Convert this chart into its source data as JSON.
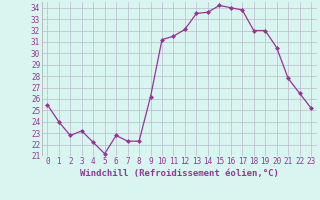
{
  "hours": [
    0,
    1,
    2,
    3,
    4,
    5,
    6,
    7,
    8,
    9,
    10,
    11,
    12,
    13,
    14,
    15,
    16,
    17,
    18,
    19,
    20,
    21,
    22,
    23
  ],
  "values": [
    25.5,
    24.0,
    22.8,
    23.2,
    22.2,
    21.2,
    22.8,
    22.3,
    22.3,
    26.2,
    31.2,
    31.5,
    32.1,
    33.5,
    33.6,
    34.2,
    34.0,
    33.8,
    32.0,
    32.0,
    30.5,
    27.8,
    26.5,
    25.2
  ],
  "line_color": "#993399",
  "marker": "D",
  "marker_size": 2,
  "bg_color": "#d8f5f0",
  "grid_color": "#bbbbcc",
  "xlabel": "Windchill (Refroidissement éolien,°C)",
  "tick_color": "#993399",
  "ylim": [
    21,
    34.5
  ],
  "yticks": [
    21,
    22,
    23,
    24,
    25,
    26,
    27,
    28,
    29,
    30,
    31,
    32,
    33,
    34
  ],
  "xticks": [
    0,
    1,
    2,
    3,
    4,
    5,
    6,
    7,
    8,
    9,
    10,
    11,
    12,
    13,
    14,
    15,
    16,
    17,
    18,
    19,
    20,
    21,
    22,
    23
  ],
  "tick_label_size": 5.5,
  "xlabel_size": 6.5
}
